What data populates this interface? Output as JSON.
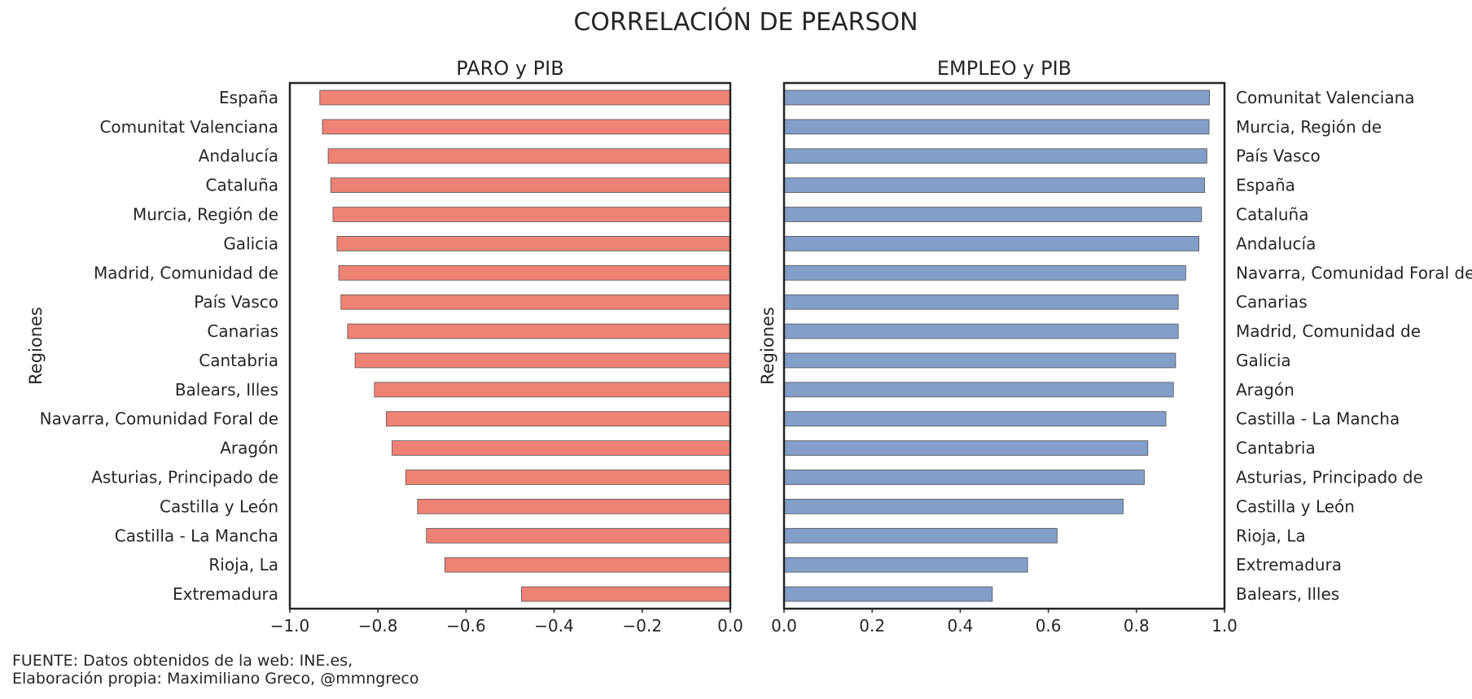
{
  "figure": {
    "title": "CORRELACIÓN DE PEARSON",
    "footer_line1": "FUENTE: Datos obtenidos de la web: INE.es,",
    "footer_line2": "Elaboración propia: Maximiliano Greco, @mmngreco"
  },
  "chart_data": [
    {
      "type": "bar",
      "orientation": "horizontal",
      "title": "PARO y PIB",
      "xlabel": "",
      "ylabel": "Regiones",
      "xlim": [
        -1.0,
        0.0
      ],
      "xticks": [
        -1.0,
        -0.8,
        -0.6,
        -0.4,
        -0.2,
        0.0
      ],
      "xtick_labels": [
        "−1.0",
        "−0.8",
        "−0.6",
        "−0.4",
        "−0.2",
        "0.0"
      ],
      "category_labels_side": "left",
      "grid": false,
      "bar_color": "#ee8275",
      "categories": [
        "España",
        "Comunitat Valenciana",
        "Andalucía",
        "Cataluña",
        "Murcia, Región de",
        "Galicia",
        "Madrid, Comunidad de",
        "País Vasco",
        "Canarias",
        "Cantabria",
        "Balears, Illes",
        "Navarra, Comunidad Foral de",
        "Aragón",
        "Asturias, Principado de",
        "Castilla y León",
        "Castilla - La Mancha",
        "Rioja, La",
        "Extremadura"
      ],
      "values": [
        -0.932,
        -0.926,
        -0.913,
        -0.907,
        -0.902,
        -0.893,
        -0.889,
        -0.884,
        -0.869,
        -0.852,
        -0.808,
        -0.781,
        -0.768,
        -0.737,
        -0.71,
        -0.69,
        -0.648,
        -0.474
      ]
    },
    {
      "type": "bar",
      "orientation": "horizontal",
      "title": "EMPLEO y PIB",
      "xlabel": "",
      "ylabel": "Regiones",
      "xlim": [
        0.0,
        1.0
      ],
      "xticks": [
        0.0,
        0.2,
        0.4,
        0.6,
        0.8,
        1.0
      ],
      "xtick_labels": [
        "0.0",
        "0.2",
        "0.4",
        "0.6",
        "0.8",
        "1.0"
      ],
      "category_labels_side": "right",
      "grid": false,
      "bar_color": "#829ec9",
      "categories": [
        "Comunitat Valenciana",
        "Murcia, Región de",
        "País Vasco",
        "España",
        "Cataluña",
        "Andalucía",
        "Navarra, Comunidad Foral de",
        "Canarias",
        "Madrid, Comunidad de",
        "Galicia",
        "Aragón",
        "Castilla - La Mancha",
        "Cantabria",
        "Asturias, Principado de",
        "Castilla y León",
        "Rioja, La",
        "Extremadura",
        "Balears, Illes"
      ],
      "values": [
        0.966,
        0.965,
        0.96,
        0.955,
        0.948,
        0.942,
        0.912,
        0.895,
        0.895,
        0.889,
        0.884,
        0.867,
        0.826,
        0.818,
        0.77,
        0.62,
        0.553,
        0.473
      ]
    }
  ]
}
